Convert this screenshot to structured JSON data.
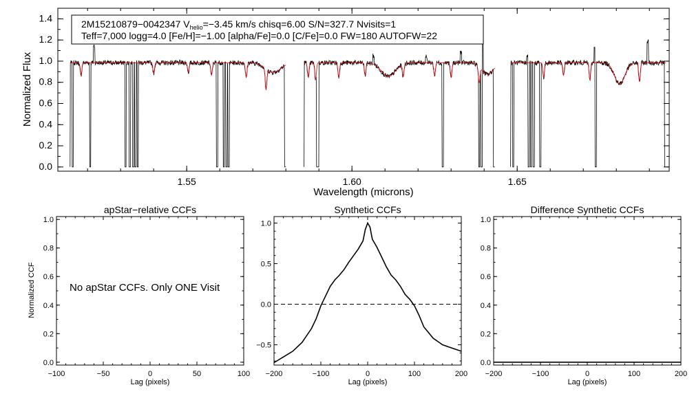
{
  "chart_data": [
    {
      "id": "spectrum",
      "type": "line",
      "xlabel": "Wavelength (microns)",
      "ylabel": "Normalized Flux",
      "xlim": [
        1.511,
        1.696
      ],
      "ylim": [
        -0.04,
        1.5
      ],
      "xticks": [
        1.55,
        1.6,
        1.65
      ],
      "xtick_labels": [
        "1.55",
        "1.60",
        "1.65"
      ],
      "yticks": [
        0.0,
        0.2,
        0.4,
        0.6,
        0.8,
        1.0,
        1.2,
        1.4
      ],
      "ytick_labels": [
        "0.0",
        "0.2",
        "0.4",
        "0.6",
        "0.8",
        "1.0",
        "1.2",
        "1.4"
      ],
      "info_box": {
        "line1_pre": "2M15210879−0042347  V",
        "line1_sub": "helio",
        "line1_post": "=−3.45 km/s  chisq=6.00  S/N=327.7  Nvisits=1",
        "line2": "Teff=7,000 logg=4.0 [Fe/H]=−1.00 [alpha/Fe]=0.0 [C/Fe]=0.0 FW=180 AUTOFW=22"
      },
      "chips": [
        [
          1.5147,
          1.58
        ],
        [
          1.5855,
          1.6432
        ],
        [
          1.648,
          1.695
        ]
      ],
      "bad_pixels": [
        1.5155,
        1.5208,
        1.5315,
        1.5328,
        1.5338,
        1.5345,
        1.5352,
        1.5592,
        1.5612,
        1.562,
        1.5627,
        1.5798,
        1.5895,
        1.5898,
        1.6275,
        1.6385,
        1.6392,
        1.643,
        1.6488,
        1.6535,
        1.6542,
        1.655,
        1.657,
        1.6738,
        1.6948
      ],
      "broad_features": [
        {
          "center": 1.5762,
          "depth": 0.09,
          "width": 0.0032
        },
        {
          "center": 1.611,
          "depth": 0.13,
          "width": 0.003
        },
        {
          "center": 1.641,
          "depth": 0.11,
          "width": 0.0025
        },
        {
          "center": 1.681,
          "depth": 0.2,
          "width": 0.0022
        }
      ],
      "sharp_features": [
        {
          "center": 1.518,
          "depth": 0.12
        },
        {
          "center": 1.54,
          "depth": 0.1
        },
        {
          "center": 1.5505,
          "depth": 0.09
        },
        {
          "center": 1.5575,
          "depth": 0.12
        },
        {
          "center": 1.568,
          "depth": 0.14
        },
        {
          "center": 1.574,
          "depth": 0.2
        },
        {
          "center": 1.5868,
          "depth": 0.14
        },
        {
          "center": 1.589,
          "depth": 0.16
        },
        {
          "center": 1.596,
          "depth": 0.14
        },
        {
          "center": 1.604,
          "depth": 0.12
        },
        {
          "center": 1.6155,
          "depth": 0.12
        },
        {
          "center": 1.625,
          "depth": 0.12
        },
        {
          "center": 1.63,
          "depth": 0.14
        },
        {
          "center": 1.6385,
          "depth": 0.15
        },
        {
          "center": 1.658,
          "depth": 0.14
        },
        {
          "center": 1.664,
          "depth": 0.12
        },
        {
          "center": 1.672,
          "depth": 0.16
        },
        {
          "center": 1.687,
          "depth": 0.18
        }
      ],
      "spikes": [
        {
          "center": 1.522,
          "height": 0.16
        },
        {
          "center": 1.6065,
          "height": 0.08
        },
        {
          "center": 1.6225,
          "height": 0.06
        },
        {
          "center": 1.633,
          "height": 0.1
        },
        {
          "center": 1.6395,
          "height": 0.35
        },
        {
          "center": 1.653,
          "height": 0.06
        },
        {
          "center": 1.6735,
          "height": 0.16
        },
        {
          "center": 1.6895,
          "height": 0.2
        }
      ],
      "series": [
        {
          "name": "observed",
          "color": "#000000"
        },
        {
          "name": "model",
          "color": "#e8000b"
        }
      ]
    },
    {
      "id": "apstar-ccf",
      "type": "line",
      "title": "apStar−relative CCFs",
      "xlabel": "Lag (pixels)",
      "ylabel": "Normalized CCF",
      "xlim": [
        -100,
        100
      ],
      "ylim": [
        -0.02,
        1.02
      ],
      "xticks": [
        -100,
        -50,
        0,
        50,
        100
      ],
      "xtick_labels": [
        "−100",
        "−50",
        "0",
        "50",
        "100"
      ],
      "yticks": [
        0.0,
        0.2,
        0.4,
        0.6,
        0.8,
        1.0
      ],
      "ytick_labels": [
        "0.0",
        "0.2",
        "0.4",
        "0.6",
        "0.8",
        "1.0"
      ],
      "annotation": "No apStar CCFs.  Only ONE Visit",
      "series": []
    },
    {
      "id": "synthetic-ccf",
      "type": "line",
      "title": "Synthetic CCFs",
      "xlabel": "Lag (pixels)",
      "xlim": [
        -200,
        200
      ],
      "ylim": [
        -0.75,
        1.08
      ],
      "xticks": [
        -200,
        -100,
        0,
        100,
        200
      ],
      "xtick_labels": [
        "−200",
        "−100",
        "0",
        "100",
        "200"
      ],
      "yticks": [
        -0.5,
        0.0,
        0.5,
        1.0
      ],
      "ytick_labels": [
        "−0.5",
        "0.0",
        "0.5",
        "1.0"
      ],
      "reference_line": 0.0,
      "series": [
        {
          "name": "synthetic-ccf",
          "x": [
            -200,
            -180,
            -160,
            -140,
            -120,
            -110,
            -100,
            -90,
            -80,
            -70,
            -60,
            -50,
            -40,
            -30,
            -20,
            -10,
            -5,
            0,
            5,
            10,
            20,
            30,
            40,
            50,
            60,
            70,
            80,
            90,
            100,
            110,
            120,
            140,
            160,
            180,
            200
          ],
          "y": [
            -0.72,
            -0.65,
            -0.58,
            -0.47,
            -0.3,
            -0.18,
            -0.02,
            0.1,
            0.22,
            0.3,
            0.36,
            0.43,
            0.52,
            0.6,
            0.68,
            0.78,
            0.92,
            1.0,
            0.95,
            0.8,
            0.7,
            0.58,
            0.46,
            0.36,
            0.3,
            0.22,
            0.12,
            0.06,
            -0.02,
            -0.14,
            -0.28,
            -0.42,
            -0.5,
            -0.54,
            -0.58
          ]
        }
      ]
    },
    {
      "id": "difference-ccf",
      "type": "line",
      "title": "Difference Synthetic CCFs",
      "xlabel": "Lag (pixels)",
      "xlim": [
        -200,
        200
      ],
      "ylim": [
        -0.02,
        1.02
      ],
      "xticks": [
        -200,
        -100,
        0,
        100,
        200
      ],
      "xtick_labels": [
        "−200",
        "−100",
        "0",
        "100",
        "200"
      ],
      "yticks": [
        0.0,
        0.2,
        0.4,
        0.6,
        0.8,
        1.0
      ],
      "ytick_labels": [
        "0.0",
        "0.2",
        "0.4",
        "0.6",
        "0.8",
        "1.0"
      ],
      "series": [
        {
          "name": "difference",
          "x": [
            -200,
            200
          ],
          "y": [
            0.0,
            0.0
          ]
        }
      ]
    }
  ]
}
